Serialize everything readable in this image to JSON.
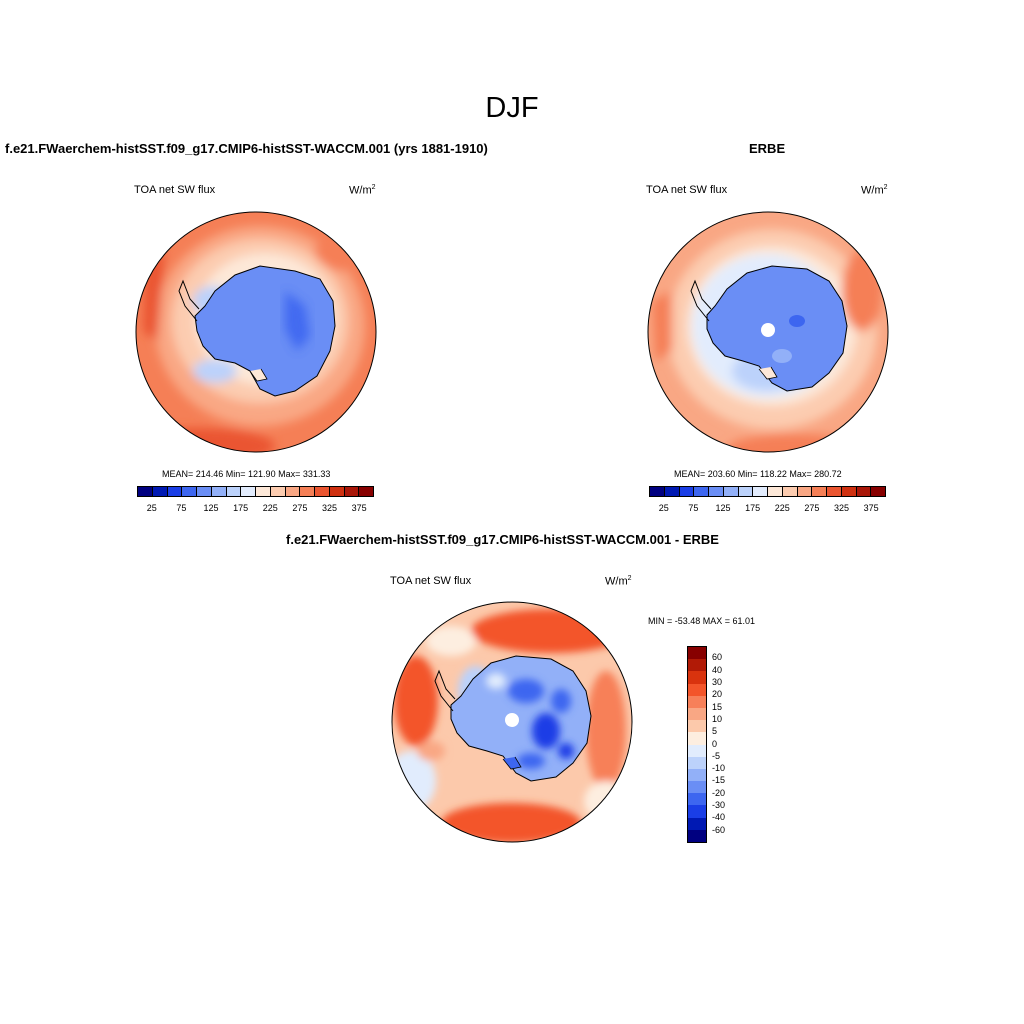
{
  "figure": {
    "title": "DJF"
  },
  "panels": {
    "model": {
      "title": "f.e21.FWaerchem-histSST.f09_g17.CMIP6-histSST-WACCM.001 (yrs 1881-1910)",
      "variable": "TOA net SW flux",
      "units": "W/m",
      "units_sup": "2",
      "stats": "MEAN= 214.46  Min= 121.90  Max= 331.33"
    },
    "obs": {
      "title": "ERBE",
      "variable": "TOA net SW flux",
      "units": "W/m",
      "units_sup": "2",
      "stats": "MEAN= 203.60  Min= 118.22  Max= 280.72"
    },
    "diff": {
      "title": "f.e21.FWaerchem-histSST.f09_g17.CMIP6-histSST-WACCM.001 - ERBE",
      "variable": "TOA net SW flux",
      "units": "W/m",
      "units_sup": "2",
      "stats": "MIN = -53.48 MAX =  61.01"
    }
  },
  "colorbar_abs": {
    "colors": [
      "#000080",
      "#0019b3",
      "#1a3ee6",
      "#3d66f0",
      "#6a8ef5",
      "#92b0f8",
      "#bcd2fb",
      "#e2ecfd",
      "#fde8d8",
      "#fcccb0",
      "#f9a784",
      "#f57f56",
      "#ea5530",
      "#cf3010",
      "#a91608",
      "#870000"
    ],
    "tick_labels": [
      "25",
      "75",
      "125",
      "175",
      "225",
      "275",
      "325",
      "375"
    ]
  },
  "colorbar_diff": {
    "colors": [
      "#870000",
      "#b11a06",
      "#d9330e",
      "#f3552a",
      "#f78059",
      "#f9a784",
      "#fcc9ab",
      "#fdeee0",
      "#e1ecfd",
      "#bcd2fb",
      "#92b0f8",
      "#6a8ef5",
      "#3d66f0",
      "#1a3ee6",
      "#0019b3",
      "#000080"
    ],
    "tick_labels": [
      "60",
      "40",
      "30",
      "20",
      "15",
      "10",
      "5",
      "0",
      "-5",
      "-10",
      "-15",
      "-20",
      "-30",
      "-40",
      "-60"
    ]
  }
}
